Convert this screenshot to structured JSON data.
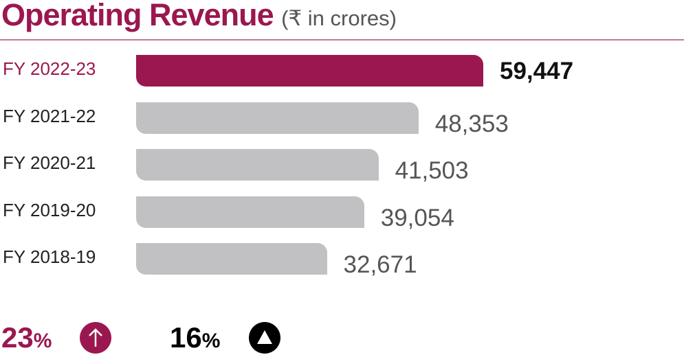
{
  "chart_data": {
    "type": "bar",
    "orientation": "horizontal",
    "title": "Operating Revenue",
    "subtitle": "(₹ in crores)",
    "categories": [
      "FY 2022-23",
      "FY 2021-22",
      "FY 2020-21",
      "FY 2019-20",
      "FY 2018-19"
    ],
    "values": [
      59447,
      48353,
      41503,
      39054,
      32671
    ],
    "value_labels": [
      "59,447",
      "48,353",
      "41,503",
      "39,054",
      "32,671"
    ],
    "highlight_index": 0,
    "colors": {
      "highlight": "#9b1750",
      "default": "#c1c1c3"
    }
  },
  "stats": [
    {
      "value": "23",
      "unit": "%",
      "icon": "arrow-up-circle-icon",
      "color": "#9b1750"
    },
    {
      "value": "16",
      "unit": "%",
      "icon": "triangle-up-circle-icon",
      "color": "#000000"
    }
  ]
}
